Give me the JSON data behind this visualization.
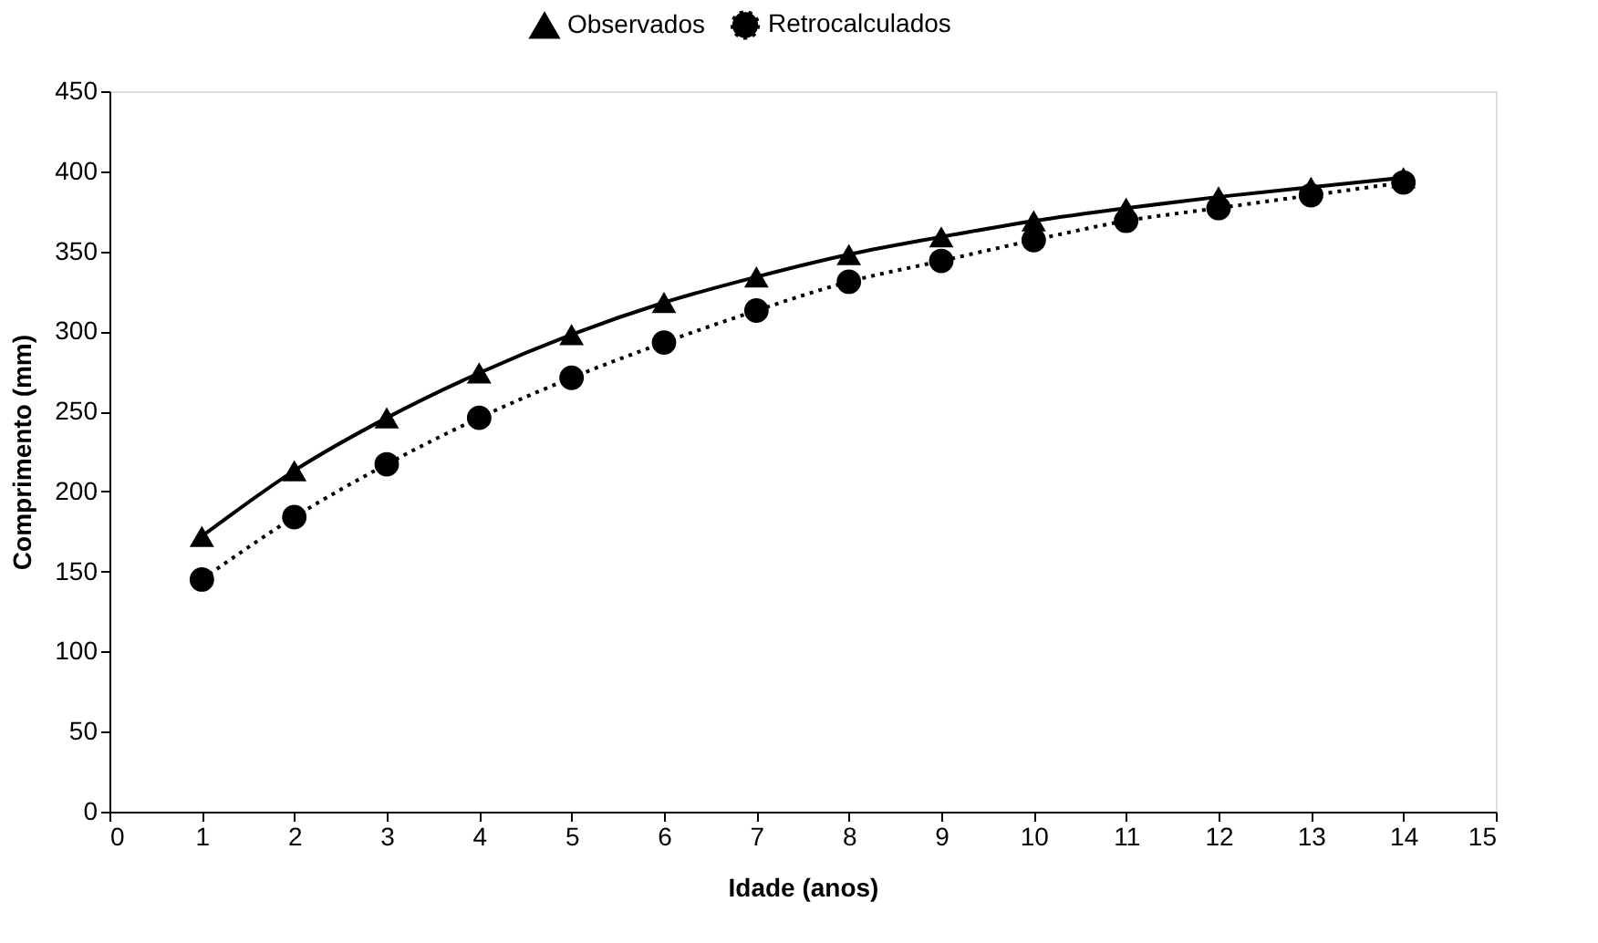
{
  "chart_data": {
    "type": "line",
    "xlabel": "Idade (anos)",
    "ylabel": "Comprimento (mm)",
    "x": [
      1,
      2,
      3,
      4,
      5,
      6,
      7,
      8,
      9,
      10,
      11,
      12,
      13,
      14
    ],
    "xlim": [
      0,
      15
    ],
    "xticks": [
      0,
      1,
      2,
      3,
      4,
      5,
      6,
      7,
      8,
      9,
      10,
      11,
      12,
      13,
      14,
      15
    ],
    "ylim": [
      0,
      450
    ],
    "yticks": [
      0,
      50,
      100,
      150,
      200,
      250,
      300,
      350,
      400,
      450
    ],
    "grid": false,
    "legend": "top",
    "series": [
      {
        "name": "Observados",
        "color": "#000000",
        "marker": "triangle",
        "line_style": "solid",
        "values": [
          172,
          213,
          246,
          274,
          298,
          318,
          334,
          348,
          359,
          369,
          377,
          384,
          390,
          396
        ]
      },
      {
        "name": "Retrocalculados",
        "color": "#000000",
        "marker": "circle",
        "line_style": "dotted",
        "values": [
          145,
          184,
          217,
          246,
          271,
          293,
          313,
          331,
          344,
          357,
          369,
          377,
          385,
          393
        ]
      }
    ]
  }
}
